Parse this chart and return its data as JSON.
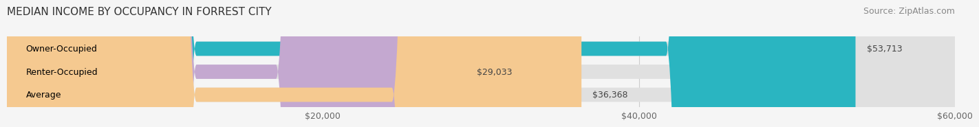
{
  "title": "MEDIAN INCOME BY OCCUPANCY IN FORREST CITY",
  "source": "Source: ZipAtlas.com",
  "categories": [
    "Owner-Occupied",
    "Renter-Occupied",
    "Average"
  ],
  "values": [
    53713,
    29033,
    36368
  ],
  "bar_colors": [
    "#2ab5c1",
    "#c4a8d0",
    "#f5c990"
  ],
  "value_labels": [
    "$53,713",
    "$29,033",
    "$36,368"
  ],
  "xlim": [
    0,
    60000
  ],
  "xticks": [
    20000,
    40000,
    60000
  ],
  "xticklabels": [
    "$20,000",
    "$40,000",
    "$60,000"
  ],
  "background_color": "#f5f5f5",
  "bar_bg_color": "#e0e0e0",
  "title_fontsize": 11,
  "source_fontsize": 9,
  "label_fontsize": 9,
  "tick_fontsize": 9
}
